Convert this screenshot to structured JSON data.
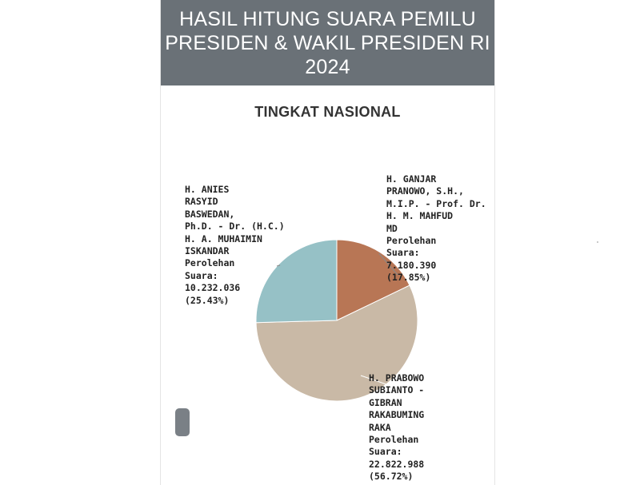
{
  "header": {
    "title_lines": [
      "HASIL HITUNG SUARA PEMILU",
      "PRESIDEN & WAKIL PRESIDEN RI",
      "2024"
    ]
  },
  "subtitle": "TINGKAT NASIONAL",
  "colors": {
    "header_bg": "#6a7177",
    "slice_anies": "#96c1c6",
    "slice_ganjar": "#b87655",
    "slice_prabowo": "#c9b9a6"
  },
  "chart_data": {
    "type": "pie",
    "title": "TINGKAT NASIONAL",
    "slices": [
      {
        "name_lines": [
          "H. GANJAR",
          "PRANOWO, S.H.,",
          "M.I.P. - Prof. Dr.",
          "H. M. MAHFUD",
          "MD"
        ],
        "label_lines": [
          "Perolehan",
          "Suara:",
          "7.180.390",
          "(17.85%)"
        ],
        "value": 7180390,
        "percent": 17.85,
        "color": "#b87655"
      },
      {
        "name_lines": [
          "H. PRABOWO",
          "SUBIANTO -",
          "GIBRAN",
          "RAKABUMING",
          "RAKA"
        ],
        "label_lines": [
          "Perolehan",
          "Suara:",
          "22.822.988",
          "(56.72%)"
        ],
        "value": 22822988,
        "percent": 56.72,
        "color": "#c9b9a6"
      },
      {
        "name_lines": [
          "H. ANIES",
          "RASYID",
          "BASWEDAN,",
          "Ph.D. - Dr. (H.C.)",
          "H. A. MUHAIMIN",
          "ISKANDAR"
        ],
        "label_lines": [
          "Perolehan",
          "Suara:",
          "10.232.036",
          "(25.43%)"
        ],
        "value": 10232036,
        "percent": 25.43,
        "color": "#96c1c6"
      }
    ]
  }
}
